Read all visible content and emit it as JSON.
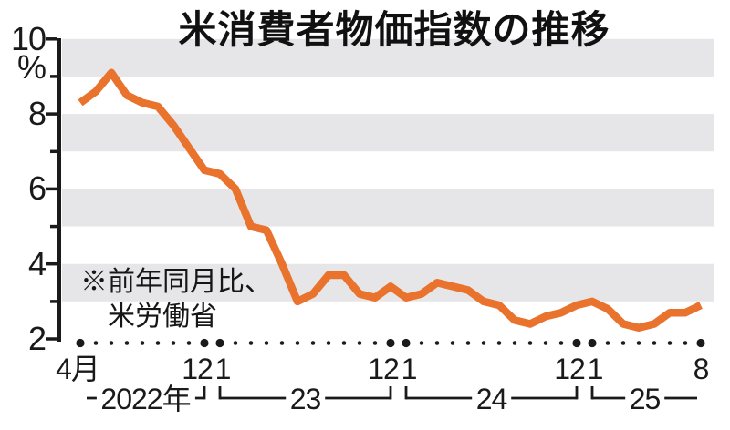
{
  "colors": {
    "line": "#e9722d",
    "band": "#e6e6e8",
    "ink": "#1a1a1a"
  },
  "chart_data": {
    "type": "line",
    "title": "米消費者物価指数の推移",
    "note": [
      "※前年同月比、",
      "米労働省"
    ],
    "unit": "%",
    "x_start_month": "2022-04",
    "x_end_month": "2025-08",
    "x_interval": "month",
    "ylim": [
      2,
      10
    ],
    "grid": "horizontal-bands",
    "shaded_bands": [
      [
        9,
        10
      ],
      [
        7,
        8
      ],
      [
        5,
        6
      ],
      [
        3,
        4
      ]
    ],
    "y_major_ticks": [
      {
        "value": 10,
        "label": "10"
      },
      {
        "value": 8,
        "label": "8"
      },
      {
        "value": 6,
        "label": "6"
      },
      {
        "value": 4,
        "label": "4"
      },
      {
        "value": 2,
        "label": "2"
      }
    ],
    "y_minor_ticks": [
      9,
      7,
      5,
      3
    ],
    "series": [
      {
        "name": "米消費者物価指数",
        "values": [
          8.3,
          8.6,
          9.1,
          8.5,
          8.3,
          8.2,
          7.7,
          7.1,
          6.5,
          6.4,
          6.0,
          5.0,
          4.9,
          4.0,
          3.0,
          3.2,
          3.7,
          3.7,
          3.2,
          3.1,
          3.4,
          3.1,
          3.2,
          3.5,
          3.4,
          3.3,
          3.0,
          2.9,
          2.5,
          2.4,
          2.6,
          2.7,
          2.9,
          3.0,
          2.8,
          2.4,
          2.3,
          2.4,
          2.7,
          2.7,
          2.9
        ]
      }
    ],
    "month_tick_labels": [
      {
        "text": "4月",
        "index": 0,
        "dx": -3
      },
      {
        "text": "12",
        "index": 8,
        "dx": -8
      },
      {
        "text": "1",
        "index": 9,
        "dx": 3
      },
      {
        "text": "12",
        "index": 20,
        "dx": -8
      },
      {
        "text": "1",
        "index": 21,
        "dx": 3
      },
      {
        "text": "12",
        "index": 32,
        "dx": -8
      },
      {
        "text": "1",
        "index": 33,
        "dx": 3
      },
      {
        "text": "8",
        "index": 40,
        "dx": 0
      }
    ],
    "emphasized_dot_indices": [
      0,
      8,
      9,
      20,
      21,
      32,
      33,
      40
    ],
    "year_groups": [
      {
        "label": "2022年",
        "start_index": 0,
        "end_index": 8,
        "start_hook": false,
        "end_hook": true
      },
      {
        "label": "23",
        "start_index": 9,
        "end_index": 20,
        "start_hook": true,
        "end_hook": true
      },
      {
        "label": "24",
        "start_index": 21,
        "end_index": 32,
        "start_hook": true,
        "end_hook": true
      },
      {
        "label": "25",
        "start_index": 33,
        "end_index": 40,
        "start_hook": true,
        "end_hook": false
      }
    ],
    "legend_position": "none"
  }
}
